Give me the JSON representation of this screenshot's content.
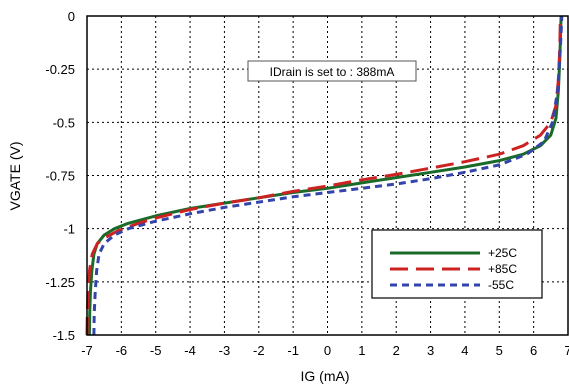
{
  "chart_data": {
    "type": "line",
    "title": "",
    "xlabel": "IG (mA)",
    "ylabel": "VGATE (V)",
    "xlim": [
      -7,
      7
    ],
    "ylim": [
      -1.5,
      0
    ],
    "xticks": [
      -7,
      -6,
      -5,
      -4,
      -3,
      -2,
      -1,
      0,
      1,
      2,
      3,
      4,
      5,
      6,
      7
    ],
    "yticks": [
      0,
      -0.25,
      -0.5,
      -0.75,
      -1,
      -1.25,
      -1.5
    ],
    "xtick_labels": [
      "-7",
      "-6",
      "-5",
      "-4",
      "-3",
      "-2",
      "-1",
      "0",
      "1",
      "2",
      "3",
      "4",
      "5",
      "6",
      "7"
    ],
    "ytick_labels": [
      "0",
      "-0.25",
      "-0.5",
      "-0.75",
      "-1",
      "-1.25",
      "-1.5"
    ],
    "grid": true,
    "legend_position": "bottom-right",
    "annotation": "IDrain is set to : 388mA",
    "series": [
      {
        "name": "+25C",
        "color": "#1a6b2a",
        "dash": "solid",
        "points": [
          [
            -6.93,
            -1.5
          ],
          [
            -6.92,
            -1.4
          ],
          [
            -6.9,
            -1.3
          ],
          [
            -6.86,
            -1.2
          ],
          [
            -6.8,
            -1.12
          ],
          [
            -6.7,
            -1.07
          ],
          [
            -6.5,
            -1.03
          ],
          [
            -6.2,
            -1.0
          ],
          [
            -5.8,
            -0.975
          ],
          [
            -5.0,
            -0.94
          ],
          [
            -4.0,
            -0.905
          ],
          [
            -3.0,
            -0.88
          ],
          [
            -2.0,
            -0.855
          ],
          [
            -1.0,
            -0.83
          ],
          [
            0.0,
            -0.81
          ],
          [
            1.0,
            -0.785
          ],
          [
            2.0,
            -0.76
          ],
          [
            3.0,
            -0.735
          ],
          [
            4.0,
            -0.71
          ],
          [
            5.0,
            -0.68
          ],
          [
            5.7,
            -0.65
          ],
          [
            6.2,
            -0.61
          ],
          [
            6.5,
            -0.56
          ],
          [
            6.65,
            -0.48
          ],
          [
            6.72,
            -0.35
          ],
          [
            6.76,
            -0.2
          ],
          [
            6.8,
            0.0
          ]
        ]
      },
      {
        "name": "+85C",
        "color": "#cc2222",
        "dash": "long-dash",
        "points": [
          [
            -7.0,
            -1.5
          ],
          [
            -6.99,
            -1.4
          ],
          [
            -6.97,
            -1.3
          ],
          [
            -6.93,
            -1.2
          ],
          [
            -6.85,
            -1.12
          ],
          [
            -6.7,
            -1.07
          ],
          [
            -6.45,
            -1.04
          ],
          [
            -6.1,
            -1.01
          ],
          [
            -5.5,
            -0.975
          ],
          [
            -5.0,
            -0.95
          ],
          [
            -4.0,
            -0.91
          ],
          [
            -3.0,
            -0.88
          ],
          [
            -2.0,
            -0.855
          ],
          [
            -1.0,
            -0.825
          ],
          [
            0.0,
            -0.8
          ],
          [
            1.0,
            -0.77
          ],
          [
            2.0,
            -0.745
          ],
          [
            3.0,
            -0.715
          ],
          [
            4.0,
            -0.685
          ],
          [
            5.0,
            -0.65
          ],
          [
            5.7,
            -0.61
          ],
          [
            6.2,
            -0.56
          ],
          [
            6.5,
            -0.5
          ],
          [
            6.65,
            -0.42
          ],
          [
            6.72,
            -0.3
          ],
          [
            6.76,
            -0.15
          ],
          [
            6.78,
            0.0
          ]
        ]
      },
      {
        "name": "-55C",
        "color": "#3344aa",
        "dash": "short-dash",
        "points": [
          [
            -6.8,
            -1.5
          ],
          [
            -6.79,
            -1.4
          ],
          [
            -6.76,
            -1.3
          ],
          [
            -6.72,
            -1.2
          ],
          [
            -6.65,
            -1.12
          ],
          [
            -6.5,
            -1.07
          ],
          [
            -6.2,
            -1.03
          ],
          [
            -5.8,
            -1.0
          ],
          [
            -5.0,
            -0.965
          ],
          [
            -4.0,
            -0.93
          ],
          [
            -3.0,
            -0.9
          ],
          [
            -2.0,
            -0.875
          ],
          [
            -1.0,
            -0.85
          ],
          [
            0.0,
            -0.83
          ],
          [
            1.0,
            -0.81
          ],
          [
            2.0,
            -0.79
          ],
          [
            3.0,
            -0.765
          ],
          [
            4.0,
            -0.735
          ],
          [
            5.0,
            -0.7
          ],
          [
            5.8,
            -0.65
          ],
          [
            6.3,
            -0.59
          ],
          [
            6.55,
            -0.5
          ],
          [
            6.7,
            -0.35
          ],
          [
            6.78,
            -0.15
          ],
          [
            6.82,
            0.0
          ]
        ]
      }
    ]
  }
}
